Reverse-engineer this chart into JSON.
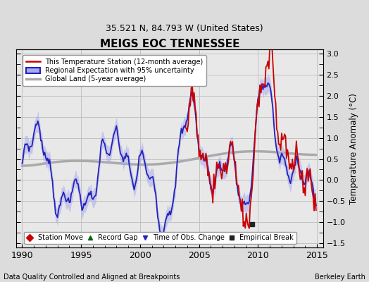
{
  "title": "MEIGS EOC TENNESSEE",
  "subtitle": "35.521 N, 84.793 W (United States)",
  "xlabel_note": "Data Quality Controlled and Aligned at Breakpoints",
  "xlabel_right": "Berkeley Earth",
  "ylabel": "Temperature Anomaly (°C)",
  "xlim": [
    1989.5,
    2015.5
  ],
  "ylim": [
    -1.6,
    3.1
  ],
  "yticks_right": [
    -1.5,
    -1.0,
    -0.5,
    0.0,
    0.5,
    1.0,
    1.5,
    2.0,
    2.5,
    3.0
  ],
  "xticks": [
    1990,
    1995,
    2000,
    2005,
    2010,
    2015
  ],
  "bg_color": "#dcdcdc",
  "plot_bg_color": "#e8e8e8",
  "station_line_color": "#cc0000",
  "regional_line_color": "#2222bb",
  "regional_fill_color": "#aaaaee",
  "global_line_color": "#aaaaaa",
  "empirical_break_x": 2009.5,
  "empirical_break_y": -1.05,
  "legend_items": [
    {
      "label": "This Temperature Station (12-month average)",
      "color": "#cc0000"
    },
    {
      "label": "Regional Expectation with 95% uncertainty",
      "color": "#2222bb"
    },
    {
      "label": "Global Land (5-year average)",
      "color": "#aaaaaa"
    }
  ],
  "marker_legend": [
    {
      "label": "Station Move",
      "marker": "D",
      "color": "#cc0000"
    },
    {
      "label": "Record Gap",
      "marker": "^",
      "color": "#006600"
    },
    {
      "label": "Time of Obs. Change",
      "marker": "v",
      "color": "#2222bb"
    },
    {
      "label": "Empirical Break",
      "marker": "s",
      "color": "#222222"
    }
  ]
}
